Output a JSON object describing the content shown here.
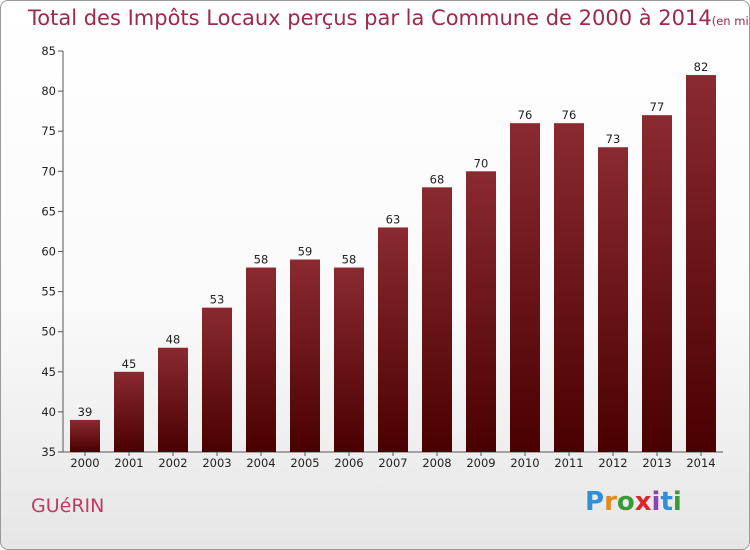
{
  "header": {
    "title": "Total des Impôts Locaux perçus par la Commune de 2000 à 2014",
    "unit": "(en milliers d'€)"
  },
  "footer": {
    "commune": "GUéRIN",
    "logo": [
      "P",
      "r",
      "o",
      "x",
      "i",
      "t",
      "i"
    ]
  },
  "colors": {
    "bar_top": "#8a2a30",
    "bar_bottom": "#4a0000",
    "title": "#a0284a",
    "commune": "#c23a64",
    "logo": [
      "#2f8fd8",
      "#e6891f",
      "#3a9a3a",
      "#d9262b",
      "#8a44b5",
      "#2f8fd8",
      "#3a9a3a"
    ]
  },
  "chart_data": {
    "type": "bar",
    "title": "Total des Impôts Locaux perçus par la Commune de 2000 à 2014",
    "ylabel": "en milliers d'€",
    "xlabel": "",
    "categories": [
      "2000",
      "2001",
      "2002",
      "2003",
      "2004",
      "2005",
      "2006",
      "2007",
      "2008",
      "2009",
      "2010",
      "2011",
      "2012",
      "2013",
      "2014"
    ],
    "values": [
      39,
      45,
      48,
      53,
      58,
      59,
      58,
      63,
      68,
      70,
      76,
      76,
      73,
      77,
      82
    ],
    "ylim": [
      35,
      85
    ],
    "yticks": [
      35,
      40,
      45,
      50,
      55,
      60,
      65,
      70,
      75,
      80,
      85
    ],
    "grid": false
  }
}
